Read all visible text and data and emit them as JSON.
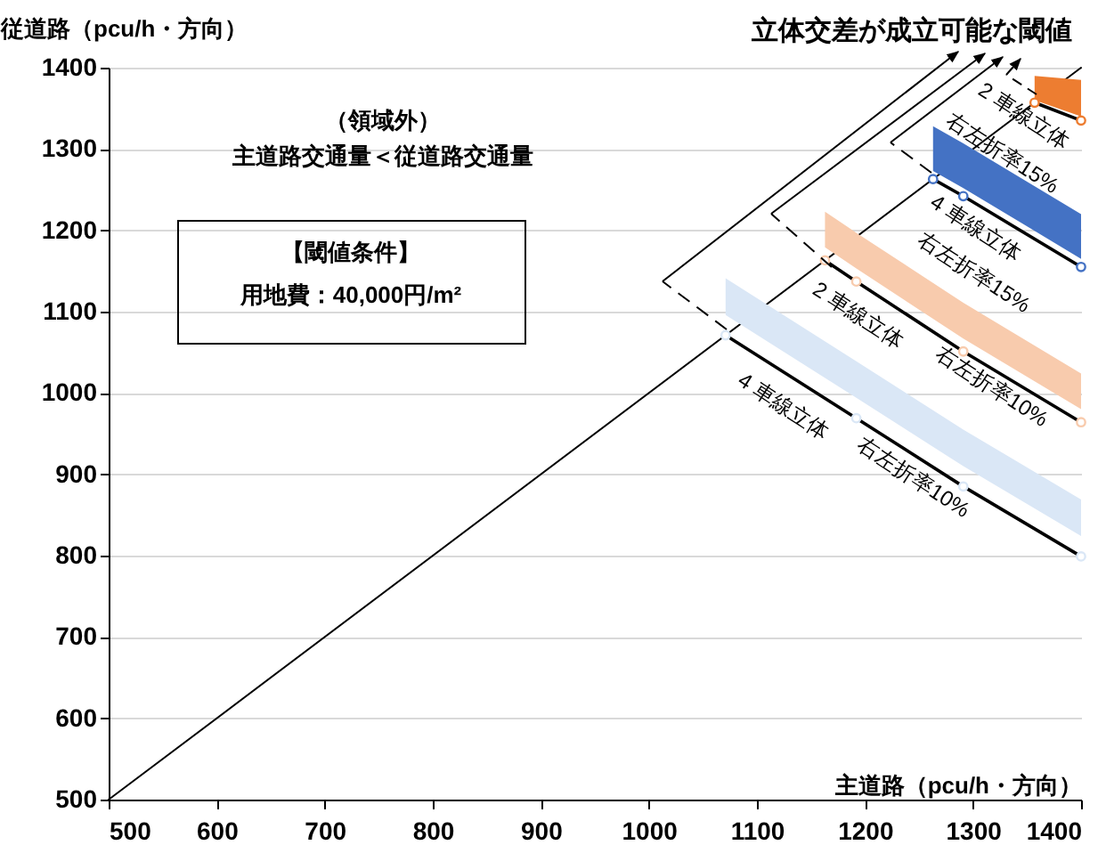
{
  "chart_data": {
    "type": "line",
    "title": "立体交差が成立可能な閾値",
    "xlabel": "主道路（pcu/h・方向）",
    "ylabel": "従道路（pcu/h・方向）",
    "xlim": [
      500,
      1400
    ],
    "ylim": [
      500,
      1400
    ],
    "xticks": [
      500,
      600,
      700,
      800,
      900,
      1000,
      1100,
      1200,
      1300,
      1400
    ],
    "yticks": [
      500,
      600,
      700,
      800,
      900,
      1000,
      1100,
      1200,
      1300,
      1400
    ],
    "grid": "y",
    "marker": "circle",
    "line_style": "solid",
    "series": [
      {
        "color": "#000000",
        "marker": "none",
        "x": [
          500,
          1400
        ],
        "values": [
          500,
          1400
        ]
      },
      {
        "color": "#ed7d31",
        "x": [
          1357,
          1400
        ],
        "values": [
          1357,
          1335
        ],
        "lower": [
          1360,
          1340
        ],
        "upper": [
          1390,
          1385
        ]
      },
      {
        "color": "#4472c4",
        "x": [
          1263,
          1291,
          1400
        ],
        "values": [
          1263,
          1242,
          1155
        ],
        "lower": [
          1273,
          1252,
          1165
        ],
        "upper": [
          1328,
          1307,
          1220
        ]
      },
      {
        "color": "#f8cbad",
        "x": [
          1163,
          1192,
          1291,
          1400
        ],
        "values": [
          1163,
          1137,
          1051,
          964
        ],
        "lower": [
          1179,
          1153,
          1067,
          980
        ],
        "upper": [
          1223,
          1197,
          1111,
          1024
        ]
      },
      {
        "color": "#dae7f6",
        "x": [
          1071,
          1192,
          1291,
          1400
        ],
        "values": [
          1071,
          969,
          885,
          799
        ],
        "lower": [
          1096,
          994,
          910,
          824
        ],
        "upper": [
          1141,
          1039,
          955,
          869
        ]
      }
    ],
    "annotations": [
      "（領域外）",
      "主道路交通量＜従道路交通量",
      "【閾値条件】",
      "用地費：40,000円/m²",
      "2 車線立体",
      "右左折率15%",
      "4 車線立体",
      "右左折率15%",
      "2 車線立体",
      "右左折率10%",
      "4 車線立体",
      "右左折率10%"
    ]
  }
}
